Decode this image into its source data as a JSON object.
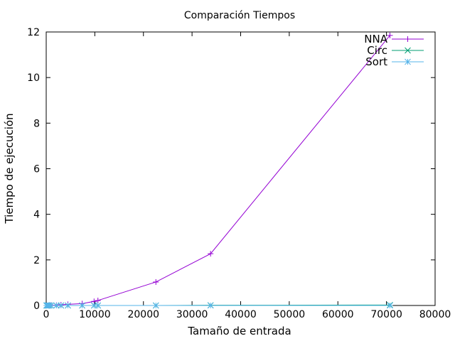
{
  "chart_data": {
    "type": "line",
    "title": "Comparación Tiempos",
    "xlabel": "Tamaño de entrada",
    "ylabel": "Tiempo de ejecución",
    "xlim": [
      0,
      80000
    ],
    "ylim": [
      0,
      12
    ],
    "xticks": [
      0,
      10000,
      20000,
      30000,
      40000,
      50000,
      60000,
      70000,
      80000
    ],
    "yticks": [
      0,
      2,
      4,
      6,
      8,
      10,
      12
    ],
    "grid": false,
    "legend": "top-right",
    "series": [
      {
        "name": "NNA",
        "color": "#9400d3",
        "marker": "plus",
        "x": [
          52,
          101,
          130,
          318,
          439,
          657,
          1002,
          2103,
          3038,
          4461,
          7397,
          9847,
          10639,
          22562,
          33810,
          70712
        ],
        "y": [
          0.0,
          0.0,
          0.0,
          0.0,
          0.0,
          0.01,
          0.01,
          0.01,
          0.03,
          0.05,
          0.08,
          0.18,
          0.22,
          1.03,
          2.27,
          11.85
        ]
      },
      {
        "name": "Circ",
        "color": "#009e73",
        "marker": "cross",
        "x": [
          52,
          101,
          130,
          318,
          439,
          657,
          1002,
          2103,
          3038,
          4461,
          7397,
          9847,
          10639,
          22562,
          33810,
          70712
        ],
        "y": [
          0,
          0,
          0,
          0,
          0,
          0,
          0,
          0,
          0,
          0,
          0,
          0,
          0,
          0,
          0.01,
          0.02
        ]
      },
      {
        "name": "Sort",
        "color": "#56b4e9",
        "marker": "star",
        "x": [
          52,
          101,
          130,
          318,
          439,
          657,
          1002,
          2103,
          3038,
          4461,
          7397,
          9847,
          10639,
          22562,
          33810,
          70712
        ],
        "y": [
          0,
          0,
          0,
          0,
          0,
          0,
          0,
          0,
          0,
          0,
          0,
          0,
          0,
          0,
          0.0,
          0.0
        ]
      }
    ]
  }
}
